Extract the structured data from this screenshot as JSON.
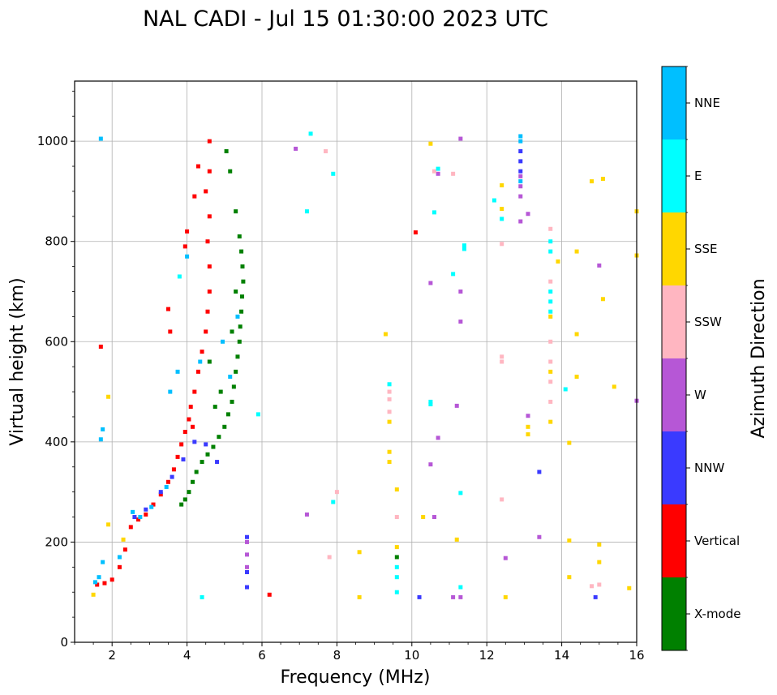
{
  "chart_data": {
    "type": "scatter",
    "title": "NAL CADI - Jul 15 01:30:00 2023 UTC",
    "xlabel": "Frequency (MHz)",
    "ylabel": "Virtual height (km)",
    "xlim": [
      1,
      16
    ],
    "ylim": [
      0,
      1120
    ],
    "grid": true,
    "x_ticks": [
      2,
      4,
      6,
      8,
      10,
      12,
      14,
      16
    ],
    "y_ticks": [
      0,
      200,
      400,
      600,
      800,
      1000
    ],
    "colorbar": {
      "title": "Azimuth Direction",
      "categories": [
        {
          "name": "X-mode",
          "color": "#008000"
        },
        {
          "name": "Vertical",
          "color": "#ff0000"
        },
        {
          "name": "NNW",
          "color": "#3a3aff"
        },
        {
          "name": "W",
          "color": "#b657d6"
        },
        {
          "name": "SSW",
          "color": "#ffb6c1"
        },
        {
          "name": "SSE",
          "color": "#ffd700"
        },
        {
          "name": "E",
          "color": "#00ffff"
        },
        {
          "name": "NNE",
          "color": "#00bfff"
        }
      ]
    },
    "series": [
      {
        "name": "X-mode",
        "points": [
          [
            3.85,
            275
          ],
          [
            3.95,
            285
          ],
          [
            4.05,
            300
          ],
          [
            4.15,
            320
          ],
          [
            4.25,
            340
          ],
          [
            4.4,
            360
          ],
          [
            4.55,
            375
          ],
          [
            4.7,
            390
          ],
          [
            4.85,
            410
          ],
          [
            5.0,
            430
          ],
          [
            5.1,
            455
          ],
          [
            5.2,
            480
          ],
          [
            5.25,
            510
          ],
          [
            5.3,
            540
          ],
          [
            5.35,
            570
          ],
          [
            5.4,
            600
          ],
          [
            5.42,
            630
          ],
          [
            5.45,
            660
          ],
          [
            5.47,
            690
          ],
          [
            5.5,
            720
          ],
          [
            5.48,
            750
          ],
          [
            5.45,
            780
          ],
          [
            5.4,
            810
          ],
          [
            5.3,
            860
          ],
          [
            5.15,
            940
          ],
          [
            5.05,
            980
          ],
          [
            4.9,
            500
          ],
          [
            4.6,
            560
          ],
          [
            4.75,
            470
          ],
          [
            5.2,
            620
          ],
          [
            5.3,
            700
          ],
          [
            9.6,
            170
          ]
        ]
      },
      {
        "name": "Vertical",
        "points": [
          [
            1.6,
            115
          ],
          [
            1.8,
            118
          ],
          [
            2.0,
            125
          ],
          [
            2.2,
            150
          ],
          [
            2.35,
            185
          ],
          [
            2.5,
            230
          ],
          [
            2.7,
            245
          ],
          [
            2.9,
            255
          ],
          [
            3.1,
            275
          ],
          [
            3.3,
            295
          ],
          [
            3.5,
            320
          ],
          [
            3.65,
            345
          ],
          [
            3.75,
            370
          ],
          [
            3.85,
            395
          ],
          [
            3.95,
            420
          ],
          [
            4.05,
            445
          ],
          [
            4.1,
            470
          ],
          [
            4.2,
            500
          ],
          [
            4.3,
            540
          ],
          [
            4.4,
            580
          ],
          [
            4.5,
            620
          ],
          [
            4.55,
            660
          ],
          [
            4.6,
            700
          ],
          [
            4.6,
            750
          ],
          [
            4.55,
            800
          ],
          [
            4.6,
            850
          ],
          [
            4.5,
            900
          ],
          [
            4.6,
            940
          ],
          [
            4.6,
            1000
          ],
          [
            4.3,
            950
          ],
          [
            4.2,
            890
          ],
          [
            4.0,
            820
          ],
          [
            3.95,
            790
          ],
          [
            4.15,
            430
          ],
          [
            6.2,
            95
          ],
          [
            10.1,
            818
          ],
          [
            1.7,
            590
          ],
          [
            3.55,
            620
          ],
          [
            3.5,
            665
          ]
        ]
      },
      {
        "name": "NNW",
        "points": [
          [
            2.6,
            250
          ],
          [
            2.9,
            265
          ],
          [
            3.3,
            300
          ],
          [
            3.6,
            330
          ],
          [
            3.9,
            365
          ],
          [
            4.2,
            400
          ],
          [
            4.5,
            395
          ],
          [
            4.8,
            360
          ],
          [
            5.6,
            140
          ],
          [
            5.6,
            210
          ],
          [
            5.6,
            110
          ],
          [
            13.4,
            340
          ],
          [
            14.9,
            90
          ],
          [
            10.2,
            90
          ],
          [
            12.9,
            980
          ],
          [
            12.9,
            960
          ],
          [
            12.9,
            940
          ]
        ]
      },
      {
        "name": "W",
        "points": [
          [
            5.6,
            175
          ],
          [
            5.6,
            150
          ],
          [
            5.6,
            200
          ],
          [
            7.2,
            255
          ],
          [
            10.5,
            355
          ],
          [
            10.6,
            250
          ],
          [
            10.7,
            408
          ],
          [
            11.2,
            472
          ],
          [
            11.3,
            640
          ],
          [
            11.3,
            700
          ],
          [
            10.5,
            717
          ],
          [
            12.5,
            168
          ],
          [
            13.4,
            210
          ],
          [
            13.1,
            452
          ],
          [
            13.1,
            855
          ],
          [
            12.9,
            840
          ],
          [
            12.9,
            890
          ],
          [
            12.9,
            910
          ],
          [
            12.9,
            930
          ],
          [
            15.0,
            752
          ],
          [
            16.0,
            482
          ],
          [
            11.3,
            1005
          ],
          [
            10.7,
            935
          ],
          [
            11.3,
            90
          ],
          [
            6.9,
            985
          ],
          [
            11.1,
            90
          ]
        ]
      },
      {
        "name": "SSW",
        "points": [
          [
            9.4,
            460
          ],
          [
            9.4,
            500
          ],
          [
            9.4,
            485
          ],
          [
            9.6,
            250
          ],
          [
            12.4,
            285
          ],
          [
            12.4,
            560
          ],
          [
            12.4,
            570
          ],
          [
            13.7,
            825
          ],
          [
            13.7,
            720
          ],
          [
            13.7,
            600
          ],
          [
            13.7,
            560
          ],
          [
            13.7,
            520
          ],
          [
            13.7,
            480
          ],
          [
            14.8,
            112
          ],
          [
            15.0,
            115
          ],
          [
            12.4,
            795
          ],
          [
            7.7,
            980
          ],
          [
            10.6,
            940
          ],
          [
            11.1,
            935
          ],
          [
            8.0,
            300
          ],
          [
            7.8,
            170
          ]
        ]
      },
      {
        "name": "SSE",
        "points": [
          [
            1.5,
            95
          ],
          [
            1.9,
            235
          ],
          [
            1.9,
            490
          ],
          [
            2.3,
            205
          ],
          [
            9.4,
            360
          ],
          [
            9.4,
            380
          ],
          [
            9.4,
            440
          ],
          [
            9.6,
            190
          ],
          [
            9.6,
            305
          ],
          [
            8.6,
            180
          ],
          [
            8.6,
            90
          ],
          [
            10.3,
            250
          ],
          [
            11.2,
            205
          ],
          [
            12.5,
            90
          ],
          [
            13.1,
            415
          ],
          [
            13.1,
            430
          ],
          [
            13.7,
            650
          ],
          [
            13.7,
            540
          ],
          [
            13.7,
            440
          ],
          [
            13.9,
            760
          ],
          [
            14.2,
            130
          ],
          [
            14.4,
            615
          ],
          [
            14.4,
            530
          ],
          [
            14.4,
            780
          ],
          [
            14.8,
            920
          ],
          [
            15.1,
            925
          ],
          [
            15.1,
            685
          ],
          [
            15.0,
            195
          ],
          [
            15.0,
            160
          ],
          [
            15.4,
            510
          ],
          [
            15.8,
            108
          ],
          [
            16.0,
            772
          ],
          [
            16.0,
            860
          ],
          [
            12.4,
            865
          ],
          [
            12.4,
            912
          ],
          [
            10.5,
            995
          ],
          [
            9.3,
            615
          ],
          [
            14.2,
            398
          ],
          [
            14.2,
            203
          ]
        ]
      },
      {
        "name": "E",
        "points": [
          [
            9.6,
            130
          ],
          [
            9.6,
            100
          ],
          [
            9.6,
            150
          ],
          [
            9.4,
            515
          ],
          [
            10.5,
            480
          ],
          [
            10.5,
            475
          ],
          [
            10.6,
            858
          ],
          [
            10.7,
            945
          ],
          [
            11.3,
            298
          ],
          [
            11.3,
            110
          ],
          [
            11.1,
            735
          ],
          [
            11.4,
            785
          ],
          [
            11.4,
            792
          ],
          [
            12.2,
            882
          ],
          [
            12.4,
            845
          ],
          [
            13.7,
            800
          ],
          [
            13.7,
            780
          ],
          [
            13.7,
            700
          ],
          [
            13.7,
            680
          ],
          [
            13.7,
            660
          ],
          [
            14.1,
            505
          ],
          [
            7.2,
            860
          ],
          [
            7.3,
            1015
          ],
          [
            7.9,
            935
          ],
          [
            7.9,
            280
          ],
          [
            4.4,
            90
          ],
          [
            5.9,
            455
          ],
          [
            3.8,
            730
          ]
        ]
      },
      {
        "name": "NNE",
        "points": [
          [
            1.55,
            120
          ],
          [
            1.65,
            130
          ],
          [
            1.75,
            160
          ],
          [
            2.2,
            170
          ],
          [
            2.55,
            260
          ],
          [
            2.75,
            250
          ],
          [
            3.05,
            270
          ],
          [
            3.45,
            310
          ],
          [
            3.55,
            500
          ],
          [
            3.75,
            540
          ],
          [
            4.0,
            770
          ],
          [
            4.35,
            560
          ],
          [
            4.95,
            600
          ],
          [
            5.15,
            530
          ],
          [
            5.35,
            650
          ],
          [
            1.75,
            425
          ],
          [
            1.7,
            405
          ],
          [
            1.7,
            1005
          ],
          [
            12.9,
            1010
          ],
          [
            12.9,
            1000
          ],
          [
            12.9,
            920
          ]
        ]
      }
    ]
  }
}
